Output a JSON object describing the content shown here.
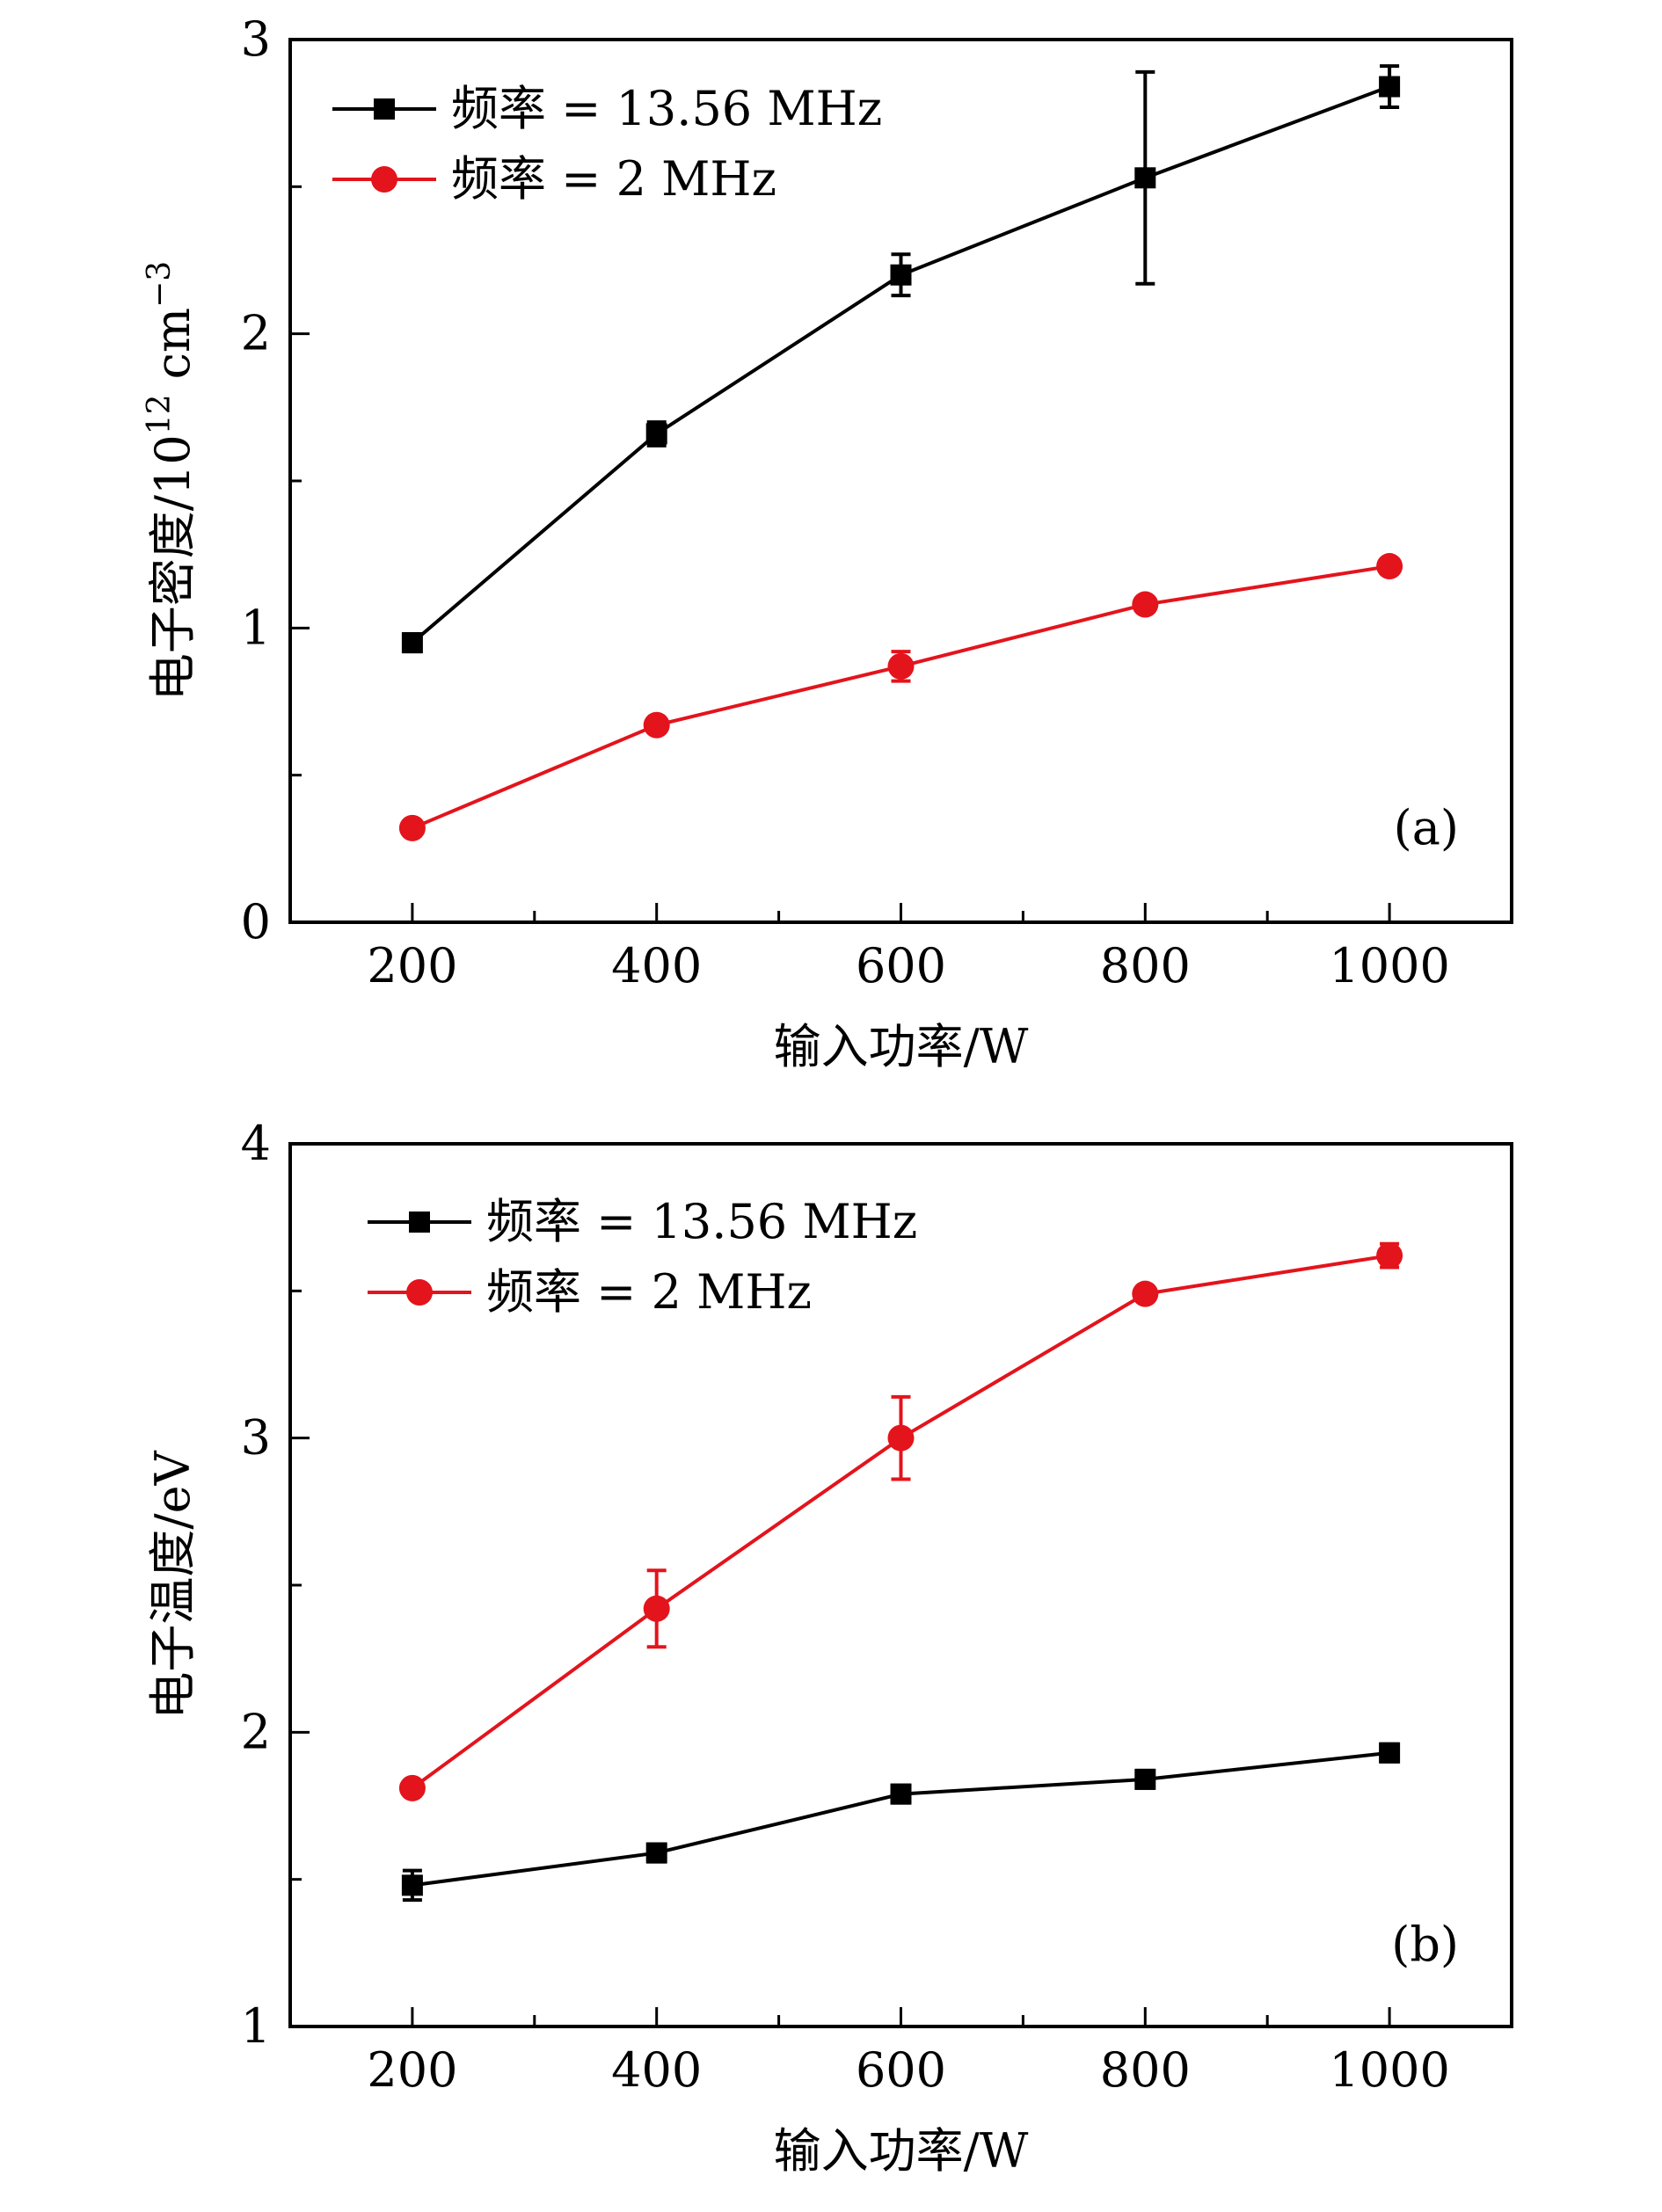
{
  "chart_data": [
    {
      "type": "line",
      "panel_label": "(a)",
      "xlabel": "输入功率/W",
      "ylabel": "电子密度/10¹² cm⁻³",
      "ylabel_main": "电子密度/10",
      "ylabel_sup": "12",
      "ylabel_unit": "cm",
      "ylabel_sup2": "−3",
      "xlim": [
        100,
        1100
      ],
      "ylim": [
        0,
        3
      ],
      "xticks": [
        200,
        400,
        600,
        800,
        1000
      ],
      "xtick_labels": [
        "200",
        "400",
        "600",
        "800",
        "1000"
      ],
      "yticks": [
        0,
        1,
        2,
        3
      ],
      "ytick_labels": [
        "0",
        "1",
        "2",
        "3"
      ],
      "grid": false,
      "legend_position": "top-left",
      "x": [
        200,
        400,
        600,
        800,
        1000
      ],
      "series": [
        {
          "name": "频率 = 13.56 MHz",
          "color": "#000000",
          "marker": "square",
          "values": [
            0.95,
            1.66,
            2.2,
            2.53,
            2.84
          ],
          "errors": [
            0.03,
            0.04,
            0.07,
            0.36,
            0.07
          ]
        },
        {
          "name": "频率 = 2 MHz",
          "color": "#e3141c",
          "marker": "circle",
          "values": [
            0.32,
            0.67,
            0.87,
            1.08,
            1.21
          ],
          "errors": [
            0.01,
            0.01,
            0.05,
            0.01,
            0.01
          ]
        }
      ]
    },
    {
      "type": "line",
      "panel_label": "(b)",
      "xlabel": "输入功率/W",
      "ylabel": "电子温度/eV",
      "xlim": [
        100,
        1100
      ],
      "ylim": [
        1,
        4
      ],
      "xticks": [
        200,
        400,
        600,
        800,
        1000
      ],
      "xtick_labels": [
        "200",
        "400",
        "600",
        "800",
        "1000"
      ],
      "yticks": [
        1,
        2,
        3,
        4
      ],
      "ytick_labels": [
        "1",
        "2",
        "3",
        "4"
      ],
      "grid": false,
      "legend_position": "top-left",
      "x": [
        200,
        400,
        600,
        800,
        1000
      ],
      "series": [
        {
          "name": "频率 = 13.56 MHz",
          "color": "#000000",
          "marker": "square",
          "values": [
            1.48,
            1.59,
            1.79,
            1.84,
            1.93
          ],
          "errors": [
            0.05,
            0.03,
            0.03,
            0.03,
            0.03
          ]
        },
        {
          "name": "频率 = 2 MHz",
          "color": "#e3141c",
          "marker": "circle",
          "values": [
            1.81,
            2.42,
            3.0,
            3.49,
            3.62
          ],
          "errors": [
            0.01,
            0.13,
            0.14,
            0.01,
            0.04
          ]
        }
      ]
    }
  ]
}
